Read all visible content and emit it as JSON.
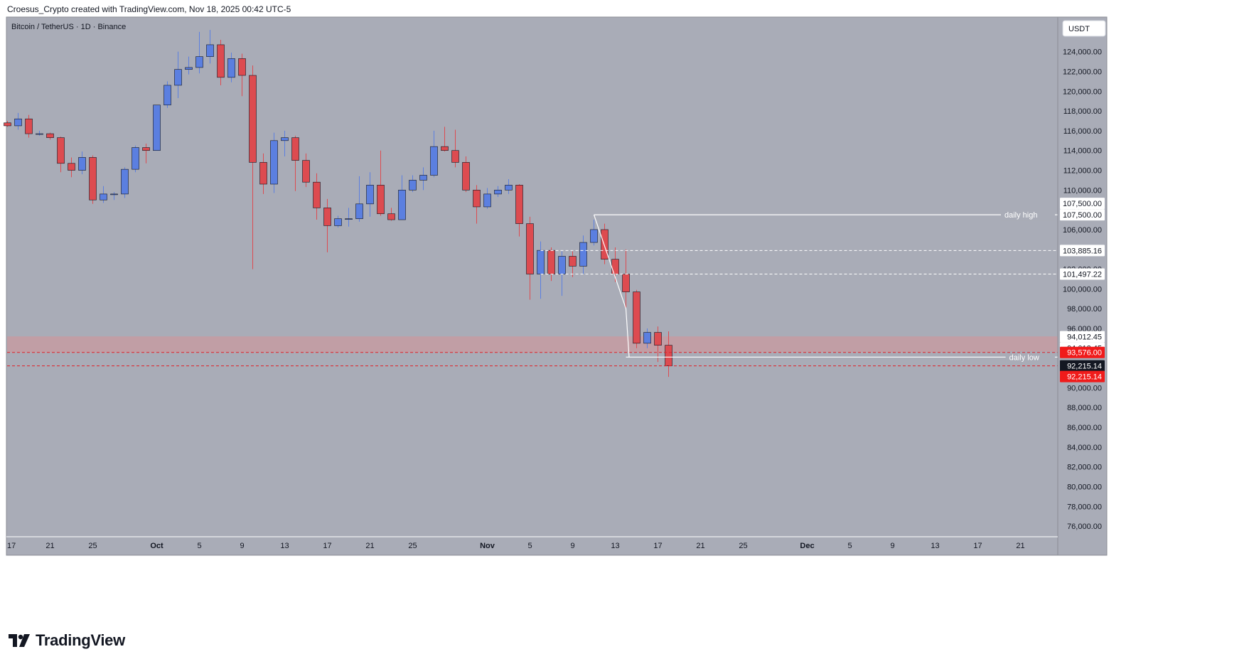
{
  "header": {
    "caption": "Croesus_Crypto created with TradingView.com, Nov 18, 2025 00:42 UTC-5"
  },
  "footer": {
    "brand": "TradingView"
  },
  "colors": {
    "background": "#a9acb7",
    "bull": "#5b7fe0",
    "bear": "#dd4b50",
    "zone": "#c99a9f",
    "price_tag_red": "#f01b1b",
    "price_tag_black": "#131722",
    "level_line": "#ffffff"
  },
  "chart_data": {
    "type": "candlestick",
    "title": "Bitcoin / TetherUS · 1D · Binance",
    "currency": "USDT",
    "y_range": [
      75000,
      127500
    ],
    "y_ticks": [
      76000,
      78000,
      80000,
      82000,
      84000,
      86000,
      88000,
      90000,
      92000,
      94000,
      96000,
      98000,
      100000,
      102000,
      104000,
      106000,
      108000,
      110000,
      112000,
      114000,
      116000,
      118000,
      120000,
      122000,
      124000
    ],
    "x_labels": [
      {
        "label": "17",
        "idx": 0
      },
      {
        "label": "21",
        "idx": 4
      },
      {
        "label": "25",
        "idx": 8
      },
      {
        "label": "Oct",
        "idx": 14
      },
      {
        "label": "5",
        "idx": 18
      },
      {
        "label": "9",
        "idx": 22
      },
      {
        "label": "13",
        "idx": 26
      },
      {
        "label": "17",
        "idx": 30
      },
      {
        "label": "21",
        "idx": 34
      },
      {
        "label": "25",
        "idx": 38
      },
      {
        "label": "Nov",
        "idx": 45
      },
      {
        "label": "5",
        "idx": 49
      },
      {
        "label": "9",
        "idx": 53
      },
      {
        "label": "13",
        "idx": 57
      },
      {
        "label": "17",
        "idx": 61
      },
      {
        "label": "21",
        "idx": 65
      },
      {
        "label": "25",
        "idx": 69
      },
      {
        "label": "Dec",
        "idx": 75
      },
      {
        "label": "5",
        "idx": 79
      },
      {
        "label": "9",
        "idx": 83
      },
      {
        "label": "13",
        "idx": 87
      },
      {
        "label": "17",
        "idx": 91
      },
      {
        "label": "21",
        "idx": 95
      }
    ],
    "candles": [
      {
        "o": 116800,
        "h": 117000,
        "l": 116400,
        "c": 116500
      },
      {
        "o": 116500,
        "h": 117800,
        "l": 116100,
        "c": 117200
      },
      {
        "o": 117200,
        "h": 117600,
        "l": 115300,
        "c": 115700
      },
      {
        "o": 115700,
        "h": 116000,
        "l": 115500,
        "c": 115700
      },
      {
        "o": 115700,
        "h": 115800,
        "l": 115100,
        "c": 115300
      },
      {
        "o": 115300,
        "h": 115400,
        "l": 111800,
        "c": 112700
      },
      {
        "o": 112700,
        "h": 113300,
        "l": 111300,
        "c": 112000
      },
      {
        "o": 112000,
        "h": 113900,
        "l": 111600,
        "c": 113300
      },
      {
        "o": 113300,
        "h": 113500,
        "l": 108600,
        "c": 109000
      },
      {
        "o": 109000,
        "h": 110400,
        "l": 108700,
        "c": 109600
      },
      {
        "o": 109600,
        "h": 109800,
        "l": 109000,
        "c": 109600
      },
      {
        "o": 109600,
        "h": 112300,
        "l": 109200,
        "c": 112100
      },
      {
        "o": 112100,
        "h": 114500,
        "l": 111800,
        "c": 114300
      },
      {
        "o": 114300,
        "h": 114700,
        "l": 112700,
        "c": 114000
      },
      {
        "o": 114000,
        "h": 118600,
        "l": 114000,
        "c": 118600
      },
      {
        "o": 118600,
        "h": 121000,
        "l": 118300,
        "c": 120600
      },
      {
        "o": 120600,
        "h": 124000,
        "l": 119300,
        "c": 122200
      },
      {
        "o": 122200,
        "h": 123500,
        "l": 121700,
        "c": 122400
      },
      {
        "o": 122400,
        "h": 126000,
        "l": 121800,
        "c": 123500
      },
      {
        "o": 123500,
        "h": 126200,
        "l": 122800,
        "c": 124700
      },
      {
        "o": 124700,
        "h": 125200,
        "l": 120600,
        "c": 121400
      },
      {
        "o": 121400,
        "h": 123900,
        "l": 120900,
        "c": 123300
      },
      {
        "o": 123300,
        "h": 123800,
        "l": 119500,
        "c": 121600
      },
      {
        "o": 121600,
        "h": 122600,
        "l": 102000,
        "c": 112800
      },
      {
        "o": 112800,
        "h": 113700,
        "l": 109600,
        "c": 110600
      },
      {
        "o": 110600,
        "h": 115800,
        "l": 109700,
        "c": 115000
      },
      {
        "o": 115000,
        "h": 116000,
        "l": 113400,
        "c": 115300
      },
      {
        "o": 115300,
        "h": 115500,
        "l": 109900,
        "c": 113000
      },
      {
        "o": 113000,
        "h": 113700,
        "l": 110300,
        "c": 110800
      },
      {
        "o": 110800,
        "h": 111700,
        "l": 107000,
        "c": 108200
      },
      {
        "o": 108200,
        "h": 109100,
        "l": 103700,
        "c": 106400
      },
      {
        "o": 106400,
        "h": 107400,
        "l": 106200,
        "c": 107100
      },
      {
        "o": 107100,
        "h": 108200,
        "l": 106300,
        "c": 107100
      },
      {
        "o": 107100,
        "h": 111400,
        "l": 106800,
        "c": 108600
      },
      {
        "o": 108600,
        "h": 111800,
        "l": 107300,
        "c": 110500
      },
      {
        "o": 110500,
        "h": 114000,
        "l": 107400,
        "c": 107600
      },
      {
        "o": 107600,
        "h": 108200,
        "l": 106900,
        "c": 107000
      },
      {
        "o": 107000,
        "h": 111500,
        "l": 107000,
        "c": 110000
      },
      {
        "o": 110000,
        "h": 111500,
        "l": 109800,
        "c": 111000
      },
      {
        "o": 111000,
        "h": 112300,
        "l": 110000,
        "c": 111500
      },
      {
        "o": 111500,
        "h": 116000,
        "l": 111300,
        "c": 114400
      },
      {
        "o": 114400,
        "h": 116400,
        "l": 113900,
        "c": 114000
      },
      {
        "o": 114000,
        "h": 116100,
        "l": 112300,
        "c": 112800
      },
      {
        "o": 112800,
        "h": 113400,
        "l": 109800,
        "c": 110000
      },
      {
        "o": 110000,
        "h": 110500,
        "l": 106600,
        "c": 108300
      },
      {
        "o": 108300,
        "h": 110200,
        "l": 108100,
        "c": 109600
      },
      {
        "o": 109600,
        "h": 110400,
        "l": 109300,
        "c": 110000
      },
      {
        "o": 110000,
        "h": 111100,
        "l": 109600,
        "c": 110500
      },
      {
        "o": 110500,
        "h": 110600,
        "l": 105300,
        "c": 106600
      },
      {
        "o": 106600,
        "h": 107300,
        "l": 98900,
        "c": 101500
      },
      {
        "o": 101500,
        "h": 104800,
        "l": 99000,
        "c": 103900
      },
      {
        "o": 103900,
        "h": 104200,
        "l": 100800,
        "c": 101500
      },
      {
        "o": 101500,
        "h": 103800,
        "l": 99300,
        "c": 103300
      },
      {
        "o": 103300,
        "h": 103800,
        "l": 101200,
        "c": 102300
      },
      {
        "o": 102300,
        "h": 105400,
        "l": 101500,
        "c": 104700
      },
      {
        "o": 104700,
        "h": 107000,
        "l": 104400,
        "c": 106000
      },
      {
        "o": 106000,
        "h": 106600,
        "l": 102500,
        "c": 103000
      },
      {
        "o": 103000,
        "h": 104200,
        "l": 100700,
        "c": 101500
      },
      {
        "o": 101500,
        "h": 104000,
        "l": 98100,
        "c": 99700
      },
      {
        "o": 99700,
        "h": 99900,
        "l": 94000,
        "c": 94500
      },
      {
        "o": 94500,
        "h": 96000,
        "l": 94000,
        "c": 95600
      },
      {
        "o": 95600,
        "h": 96200,
        "l": 92600,
        "c": 94300
      },
      {
        "o": 94300,
        "h": 95700,
        "l": 91100,
        "c": 92215.14
      }
    ],
    "zone": {
      "from": 93576.0,
      "to": 95200
    },
    "levels": [
      {
        "name": "daily high",
        "price": 107500.0,
        "style": "solid",
        "label": "daily high",
        "tags": [
          "107,500.00",
          "107,500.00"
        ]
      },
      {
        "name": "level-103885",
        "price": 103885.16,
        "style": "dashed",
        "tags": [
          "103,885.16"
        ]
      },
      {
        "name": "level-101497",
        "price": 101497.22,
        "style": "dashed",
        "tags": [
          "101,497.22"
        ]
      },
      {
        "name": "daily low",
        "price": 93100,
        "style": "solid",
        "label": "daily low"
      },
      {
        "name": "level-94012",
        "price": 94012.45,
        "style": "none",
        "tags": [
          "94,012.45",
          "94,012.45"
        ]
      },
      {
        "name": "level-93576",
        "price": 93576.0,
        "style": "red-dashed",
        "tags": [
          "93,576.00"
        ]
      },
      {
        "name": "level-92215",
        "price": 92215.14,
        "style": "red-dashed",
        "tags": [
          "92,215.14",
          "92,215.14"
        ]
      }
    ],
    "grid": false
  }
}
